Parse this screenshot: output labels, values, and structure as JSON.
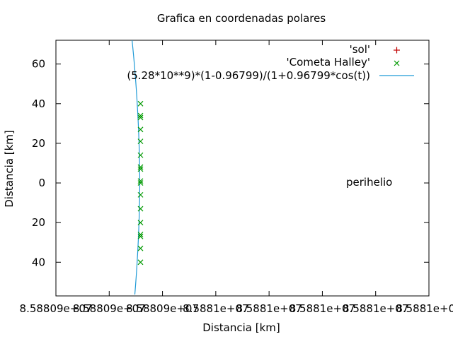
{
  "chart_data": {
    "type": "scatter",
    "title": "Grafica en coordenadas polares",
    "xlabel": "Distancia [km]",
    "ylabel": "Distancia [km]",
    "x_tick_labels": [
      "8.58809e+07",
      "8.58809e+07",
      "8.58809e+07",
      "8.5881e+07",
      "8.5881e+07",
      "8.5881e+07",
      "8.5881e+07",
      "8.5881e+07"
    ],
    "y_tick_labels": [
      "40",
      "20",
      "0",
      "20",
      "40",
      "60"
    ],
    "y_tick_values": [
      -40,
      -20,
      0,
      20,
      40,
      60
    ],
    "ylim": [
      -57,
      72
    ],
    "grid": false,
    "legend_position": "top-right",
    "annotation": "perihelio",
    "series": [
      {
        "name": "'sol'",
        "type": "scatter",
        "marker": "+",
        "color": "#c00000",
        "points": []
      },
      {
        "name": "'Cometa Halley'",
        "type": "scatter",
        "marker": "x",
        "color": "#009900",
        "y": [
          40,
          34,
          33,
          27,
          21,
          14,
          8,
          7,
          1,
          0,
          -6,
          -13,
          -20,
          -26,
          -27,
          -33,
          -40
        ]
      },
      {
        "name": "(5.28*10**9)*(1-0.96799)/(1+0.96799*cos(t))",
        "type": "line",
        "color": "#1f9ad6"
      }
    ]
  }
}
